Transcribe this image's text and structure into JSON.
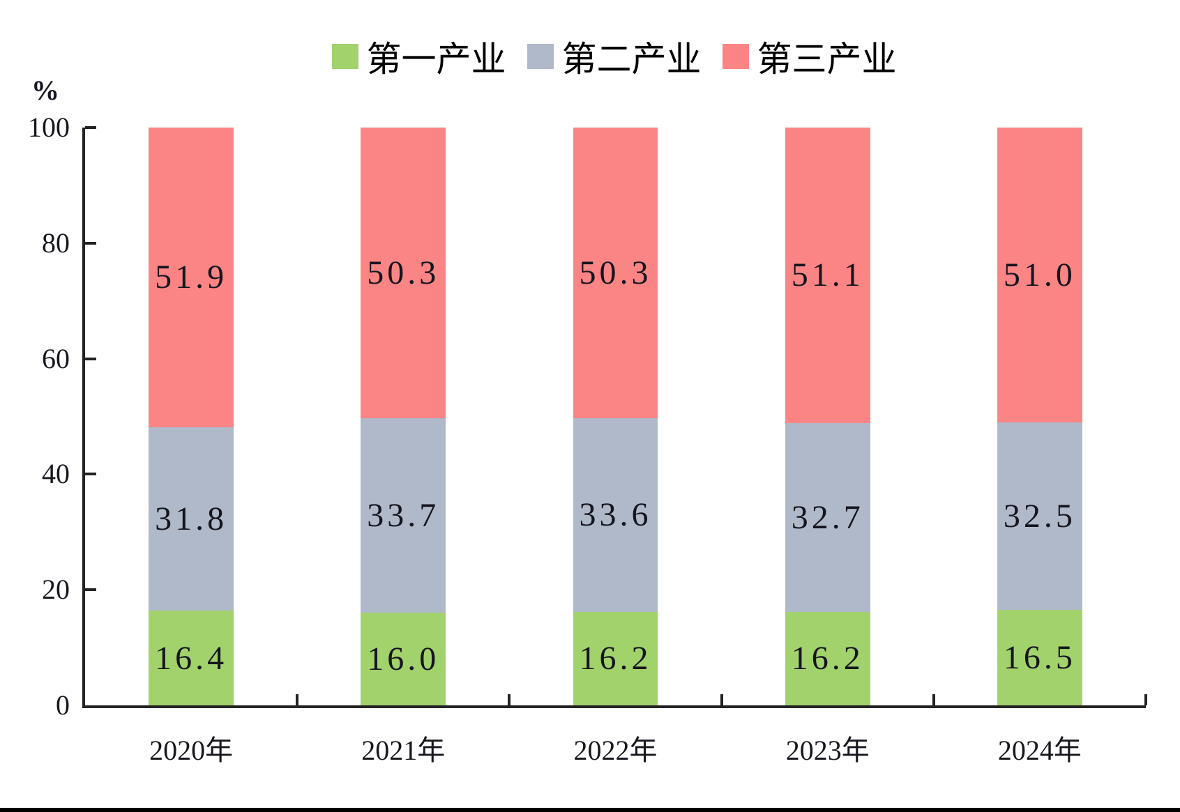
{
  "chart_data": {
    "type": "bar",
    "stacked": true,
    "orientation": "vertical",
    "unit_label": "%",
    "categories": [
      "2020年",
      "2021年",
      "2022年",
      "2023年",
      "2024年"
    ],
    "series": [
      {
        "name": "第一产业",
        "color": "#A2D26C",
        "values": [
          16.4,
          16.0,
          16.2,
          16.2,
          16.5
        ]
      },
      {
        "name": "第二产业",
        "color": "#AFB9C9",
        "values": [
          31.8,
          33.7,
          33.6,
          32.7,
          32.5
        ]
      },
      {
        "name": "第三产业",
        "color": "#FB8585",
        "values": [
          51.9,
          50.3,
          50.3,
          51.1,
          51.0
        ]
      }
    ],
    "ylim": [
      0,
      100
    ],
    "yticks": [
      0,
      20,
      40,
      60,
      80,
      100
    ],
    "grid": false,
    "legend_position": "top",
    "value_label_decimals": 1
  },
  "style": {
    "axis_color": "#232323",
    "text_color": "#17171f",
    "background": "#ffffff",
    "footer_bar_color": "#000000"
  }
}
